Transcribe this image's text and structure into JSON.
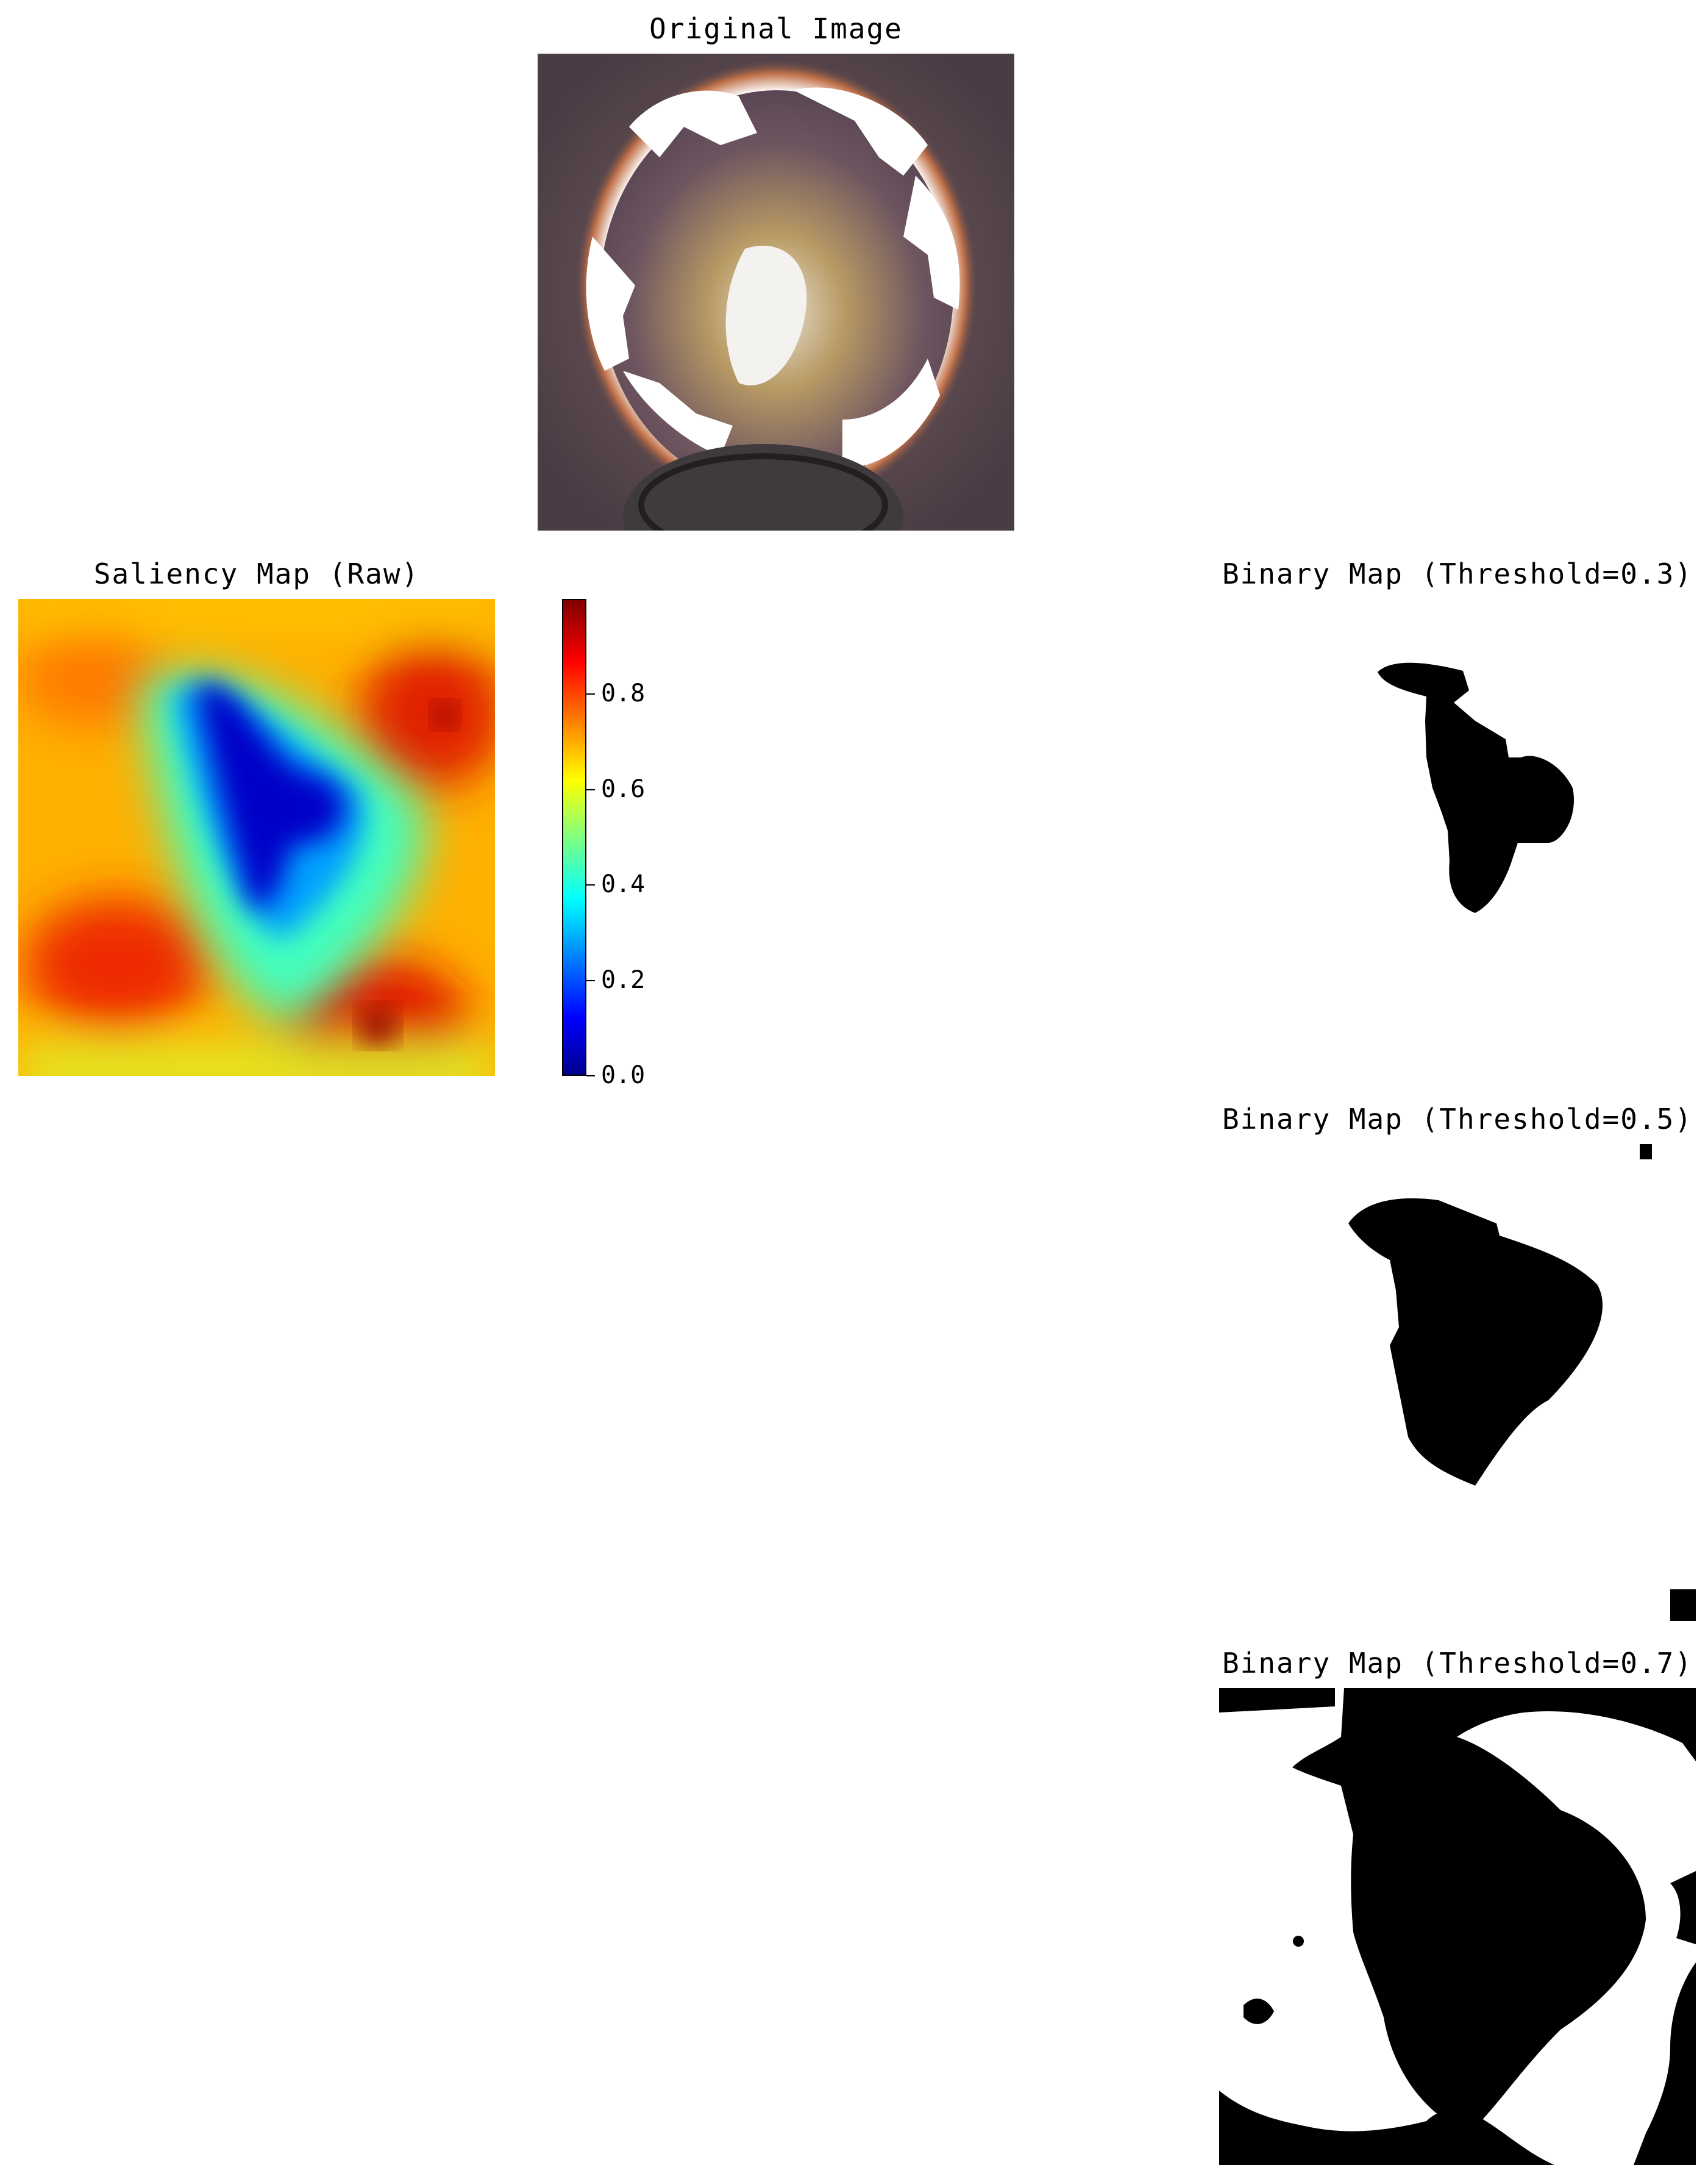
{
  "panels": {
    "original": {
      "title": "Original Image"
    },
    "saliency": {
      "title": "Saliency Map (Raw)"
    },
    "binary_03": {
      "title": "Binary Map (Threshold=0.3)"
    },
    "binary_05": {
      "title": "Binary Map (Threshold=0.5)"
    },
    "binary_07": {
      "title": "Binary Map (Threshold=0.7)"
    }
  },
  "colorbar": {
    "colormap": "jet",
    "range": [
      0.0,
      1.0
    ],
    "ticks": [
      "0.0",
      "0.2",
      "0.4",
      "0.6",
      "0.8"
    ]
  },
  "colors": {
    "background": "#ffffff",
    "mask": "#000000"
  }
}
